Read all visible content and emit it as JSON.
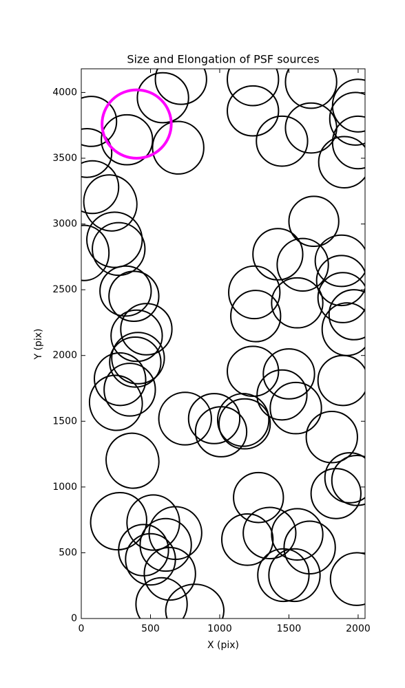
{
  "chart_data": {
    "type": "ellipse",
    "title": "Size and Elongation of PSF sources",
    "x_label": "X (pix)",
    "y_label": "Y (pix)",
    "xlim": [
      0,
      2050
    ],
    "ylim": [
      0,
      4180
    ],
    "xticks": [
      0,
      500,
      1000,
      1500,
      2000
    ],
    "yticks": [
      0,
      500,
      1000,
      1500,
      2000,
      2500,
      3000,
      3500,
      4000
    ],
    "series": [
      {
        "color": "#000000",
        "x": [
          70,
          40,
          80,
          210,
          240,
          270,
          20,
          320,
          380,
          470,
          400,
          410,
          390,
          280,
          350,
          250,
          370,
          270,
          520,
          680,
          610,
          450,
          500,
          640,
          580,
          820,
          330,
          590,
          720,
          700,
          750,
          960,
          1010,
          1170,
          1180,
          1280,
          1200,
          1360,
          1560,
          1650,
          1460,
          1540,
          1240,
          1500,
          1450,
          1550,
          1250,
          1260,
          1420,
          1560,
          1600,
          1680,
          1880,
          1880,
          1890,
          1970,
          1920,
          1890,
          1810,
          1840,
          1940,
          1990,
          1990,
          1240,
          1240,
          1450,
          1660,
          1660,
          2000,
          1980,
          1900,
          2000
        ],
        "y": [
          3780,
          3540,
          3280,
          3160,
          2880,
          2810,
          2780,
          2490,
          2450,
          2200,
          2150,
          1980,
          1950,
          1820,
          1740,
          1640,
          1200,
          740,
          730,
          650,
          560,
          520,
          450,
          340,
          110,
          60,
          3640,
          3960,
          4100,
          3580,
          1520,
          1520,
          1420,
          1510,
          1480,
          920,
          600,
          650,
          640,
          540,
          330,
          330,
          1880,
          1860,
          1700,
          1600,
          2480,
          2300,
          2770,
          2400,
          2690,
          3020,
          2720,
          2570,
          2440,
          2310,
          2200,
          1810,
          1380,
          950,
          1070,
          1050,
          300,
          4100,
          3860,
          3630,
          4080,
          3730,
          3900,
          3800,
          3470,
          3620
        ],
        "width": [
          370,
          360,
          380,
          380,
          400,
          380,
          360,
          370,
          360,
          370,
          370,
          380,
          370,
          370,
          370,
          380,
          380,
          400,
          380,
          380,
          370,
          360,
          360,
          370,
          370,
          420,
          370,
          370,
          370,
          370,
          380,
          370,
          370,
          370,
          370,
          360,
          370,
          380,
          370,
          370,
          370,
          370,
          370,
          370,
          360,
          370,
          370,
          360,
          360,
          370,
          370,
          360,
          380,
          360,
          360,
          360,
          360,
          360,
          370,
          360,
          360,
          360,
          380,
          370,
          370,
          370,
          370,
          370,
          370,
          370,
          370,
          370
        ],
        "height": [
          380,
          370,
          400,
          430,
          420,
          400,
          420,
          380,
          380,
          390,
          390,
          390,
          380,
          400,
          400,
          420,
          420,
          440,
          420,
          400,
          400,
          390,
          390,
          400,
          400,
          400,
          380,
          380,
          380,
          400,
          400,
          380,
          380,
          400,
          380,
          380,
          390,
          390,
          390,
          400,
          400,
          400,
          380,
          380,
          380,
          390,
          400,
          390,
          390,
          380,
          400,
          380,
          390,
          380,
          380,
          380,
          400,
          380,
          390,
          380,
          380,
          380,
          400,
          400,
          380,
          380,
          400,
          380,
          400,
          400,
          390,
          400
        ],
        "angle": [
          0,
          0,
          0,
          20,
          15,
          0,
          0,
          0,
          0,
          0,
          0,
          0,
          0,
          10,
          0,
          15,
          15,
          -30,
          0,
          0,
          0,
          0,
          0,
          0,
          0,
          0,
          0,
          0,
          0,
          0,
          0,
          0,
          0,
          0,
          0,
          0,
          0,
          0,
          0,
          0,
          0,
          0,
          0,
          0,
          0,
          0,
          0,
          0,
          0,
          0,
          0,
          0,
          0,
          0,
          0,
          0,
          0,
          0,
          0,
          0,
          0,
          0,
          0,
          0,
          0,
          0,
          0,
          0,
          0,
          0,
          0,
          0
        ]
      },
      {
        "color": "#ff00ff",
        "x": [
          400
        ],
        "y": [
          3760
        ],
        "width": [
          500
        ],
        "height": [
          520
        ],
        "angle": [
          0
        ]
      }
    ]
  }
}
